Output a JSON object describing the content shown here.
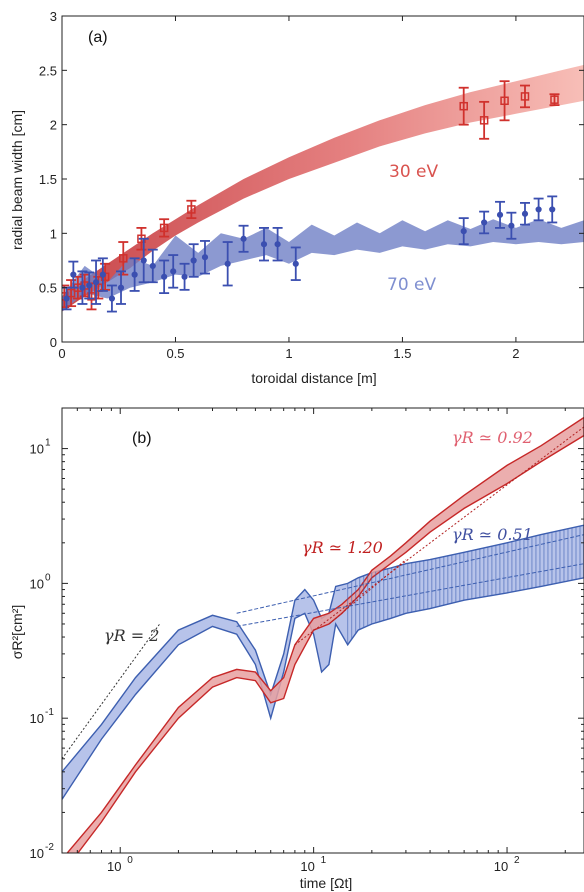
{
  "chart_data": [
    {
      "type": "line",
      "panel_label": "(a)",
      "xlabel": "toroidal distance [m]",
      "ylabel": "radial beam width [cm]",
      "xlim": [
        0,
        2.3
      ],
      "ylim": [
        0,
        3
      ],
      "xticks": [
        "0",
        "0.5",
        "1",
        "1.5",
        "2"
      ],
      "yticks": [
        "0",
        "0.5",
        "1",
        "1.5",
        "2",
        "2.5",
        "3"
      ],
      "series": [
        {
          "name": "30 eV",
          "color": "#d04040",
          "band_x": [
            0,
            0.1,
            0.2,
            0.3,
            0.4,
            0.5,
            0.6,
            0.8,
            1.0,
            1.2,
            1.4,
            1.6,
            1.8,
            2.0,
            2.2,
            2.3
          ],
          "band_low": [
            0.28,
            0.42,
            0.55,
            0.68,
            0.84,
            0.98,
            1.1,
            1.32,
            1.5,
            1.65,
            1.8,
            1.92,
            2.02,
            2.1,
            2.18,
            2.22
          ],
          "band_high": [
            0.42,
            0.58,
            0.72,
            0.86,
            1.0,
            1.13,
            1.26,
            1.5,
            1.7,
            1.88,
            2.04,
            2.18,
            2.3,
            2.4,
            2.5,
            2.55
          ],
          "points": [
            {
              "x": 0.01,
              "y": 0.42,
              "err": 0.1
            },
            {
              "x": 0.04,
              "y": 0.45,
              "err": 0.12
            },
            {
              "x": 0.07,
              "y": 0.5,
              "err": 0.1
            },
            {
              "x": 0.1,
              "y": 0.52,
              "err": 0.1
            },
            {
              "x": 0.13,
              "y": 0.42,
              "err": 0.12
            },
            {
              "x": 0.16,
              "y": 0.5,
              "err": 0.1
            },
            {
              "x": 0.19,
              "y": 0.6,
              "err": 0.12
            },
            {
              "x": 0.27,
              "y": 0.77,
              "err": 0.15
            },
            {
              "x": 0.35,
              "y": 0.95,
              "err": 0.1
            },
            {
              "x": 0.45,
              "y": 1.05,
              "err": 0.08
            },
            {
              "x": 0.57,
              "y": 1.22,
              "err": 0.08
            },
            {
              "x": 1.77,
              "y": 2.17,
              "err": 0.17
            },
            {
              "x": 1.86,
              "y": 2.04,
              "err": 0.17
            },
            {
              "x": 1.95,
              "y": 2.22,
              "err": 0.18
            },
            {
              "x": 2.04,
              "y": 2.26,
              "err": 0.1
            },
            {
              "x": 2.17,
              "y": 2.23,
              "err": 0.05
            }
          ]
        },
        {
          "name": "70 eV",
          "color": "#5060b0",
          "band_x": [
            0,
            0.1,
            0.2,
            0.3,
            0.4,
            0.5,
            0.6,
            0.7,
            0.8,
            0.9,
            1.0,
            1.1,
            1.2,
            1.3,
            1.4,
            1.5,
            1.6,
            1.7,
            1.8,
            1.9,
            2.0,
            2.1,
            2.2,
            2.3
          ],
          "band_low": [
            0.28,
            0.45,
            0.4,
            0.5,
            0.55,
            0.62,
            0.6,
            0.7,
            0.75,
            0.8,
            0.72,
            0.82,
            0.8,
            0.85,
            0.82,
            0.88,
            0.85,
            0.9,
            0.88,
            0.92,
            0.9,
            0.92,
            0.9,
            0.92
          ],
          "band_high": [
            0.42,
            0.7,
            0.55,
            0.78,
            0.7,
            0.98,
            0.82,
            1.0,
            0.95,
            1.05,
            0.92,
            1.08,
            0.98,
            1.1,
            1.0,
            1.12,
            1.02,
            1.12,
            1.04,
            1.13,
            1.05,
            1.13,
            1.05,
            1.12
          ],
          "points": [
            {
              "x": 0.02,
              "y": 0.4,
              "err": 0.1
            },
            {
              "x": 0.05,
              "y": 0.62,
              "err": 0.12
            },
            {
              "x": 0.09,
              "y": 0.5,
              "err": 0.15
            },
            {
              "x": 0.12,
              "y": 0.52,
              "err": 0.12
            },
            {
              "x": 0.15,
              "y": 0.55,
              "err": 0.2
            },
            {
              "x": 0.18,
              "y": 0.62,
              "err": 0.15
            },
            {
              "x": 0.22,
              "y": 0.4,
              "err": 0.12
            },
            {
              "x": 0.26,
              "y": 0.5,
              "err": 0.15
            },
            {
              "x": 0.32,
              "y": 0.62,
              "err": 0.15
            },
            {
              "x": 0.36,
              "y": 0.75,
              "err": 0.2
            },
            {
              "x": 0.4,
              "y": 0.7,
              "err": 0.15
            },
            {
              "x": 0.45,
              "y": 0.6,
              "err": 0.15
            },
            {
              "x": 0.49,
              "y": 0.65,
              "err": 0.15
            },
            {
              "x": 0.54,
              "y": 0.6,
              "err": 0.12
            },
            {
              "x": 0.58,
              "y": 0.75,
              "err": 0.15
            },
            {
              "x": 0.63,
              "y": 0.78,
              "err": 0.15
            },
            {
              "x": 0.73,
              "y": 0.72,
              "err": 0.2
            },
            {
              "x": 0.8,
              "y": 0.95,
              "err": 0.12
            },
            {
              "x": 0.89,
              "y": 0.9,
              "err": 0.15
            },
            {
              "x": 0.95,
              "y": 0.9,
              "err": 0.15
            },
            {
              "x": 1.03,
              "y": 0.72,
              "err": 0.15
            },
            {
              "x": 1.77,
              "y": 1.02,
              "err": 0.12
            },
            {
              "x": 1.86,
              "y": 1.1,
              "err": 0.1
            },
            {
              "x": 1.93,
              "y": 1.17,
              "err": 0.12
            },
            {
              "x": 1.98,
              "y": 1.07,
              "err": 0.12
            },
            {
              "x": 2.04,
              "y": 1.18,
              "err": 0.1
            },
            {
              "x": 2.1,
              "y": 1.22,
              "err": 0.1
            },
            {
              "x": 2.16,
              "y": 1.22,
              "err": 0.12
            }
          ]
        }
      ]
    },
    {
      "type": "line",
      "panel_label": "(b)",
      "xlabel": "time [Ωt]",
      "ylabel": "σR²[cm²]",
      "xscale": "log",
      "yscale": "log",
      "xlim": [
        0.5,
        250
      ],
      "ylim": [
        0.01,
        20
      ],
      "xticks": [
        {
          "base": "10",
          "exp": "0"
        },
        {
          "base": "10",
          "exp": "1"
        },
        {
          "base": "10",
          "exp": "2"
        }
      ],
      "yticks": [
        {
          "base": "10",
          "exp": "-2"
        },
        {
          "base": "10",
          "exp": "-1"
        },
        {
          "base": "10",
          "exp": "0"
        },
        {
          "base": "10",
          "exp": "1"
        }
      ],
      "annotations": [
        {
          "text": "γR ≃ 0.92",
          "color": "#e06070"
        },
        {
          "text": "γR ≃ 0.51",
          "color": "#4050a0"
        },
        {
          "text": "γR ≃ 1.20",
          "color": "#c02020"
        },
        {
          "text": "γR = 2",
          "color": "#333333"
        }
      ],
      "series": [
        {
          "name": "red",
          "color": "#c62828",
          "x": [
            0.5,
            0.8,
            1.2,
            2,
            3,
            4,
            5,
            6,
            7,
            8,
            10,
            12,
            14,
            17,
            20,
            25,
            30,
            40,
            60,
            100,
            150,
            250
          ],
          "low": [
            0.007,
            0.017,
            0.04,
            0.1,
            0.17,
            0.2,
            0.19,
            0.13,
            0.14,
            0.25,
            0.45,
            0.5,
            0.6,
            0.8,
            1.1,
            1.4,
            1.7,
            2.4,
            3.6,
            5.5,
            8.0,
            12.5
          ],
          "high": [
            0.009,
            0.02,
            0.045,
            0.12,
            0.2,
            0.23,
            0.22,
            0.16,
            0.2,
            0.35,
            0.55,
            0.6,
            0.7,
            0.9,
            1.25,
            1.6,
            2.0,
            2.9,
            4.5,
            7.5,
            10.5,
            17.0
          ]
        },
        {
          "name": "blue",
          "color": "#3d5fb0",
          "x": [
            0.5,
            0.8,
            1.2,
            2,
            3,
            4,
            5,
            6,
            7,
            8,
            9,
            10,
            11,
            12,
            13,
            15,
            17,
            20,
            25,
            30,
            40,
            60,
            100,
            150,
            250
          ],
          "low": [
            0.025,
            0.07,
            0.15,
            0.35,
            0.48,
            0.42,
            0.25,
            0.1,
            0.22,
            0.55,
            0.6,
            0.42,
            0.22,
            0.25,
            0.5,
            0.35,
            0.45,
            0.5,
            0.55,
            0.6,
            0.65,
            0.75,
            0.85,
            0.95,
            1.1
          ],
          "high": [
            0.04,
            0.09,
            0.2,
            0.45,
            0.58,
            0.52,
            0.32,
            0.15,
            0.3,
            0.75,
            0.9,
            0.75,
            0.55,
            0.6,
            0.95,
            1.0,
            1.1,
            1.2,
            1.3,
            1.4,
            1.5,
            1.7,
            2.0,
            2.3,
            2.7
          ]
        }
      ],
      "fits": [
        {
          "name": "γR ≃ 0.92",
          "x": [
            8,
            250
          ],
          "y": [
            0.35,
            14.5
          ]
        },
        {
          "name": "γR ≃ 1.20",
          "x": [
            12,
            30
          ],
          "y": [
            0.5,
            1.5
          ]
        },
        {
          "name": "γR ≃ 0.51 upper",
          "x": [
            4,
            250
          ],
          "y": [
            0.6,
            2.3
          ]
        },
        {
          "name": "γR ≃ 0.51 lower",
          "x": [
            4,
            250
          ],
          "y": [
            0.48,
            1.4
          ]
        },
        {
          "name": "γR = 2",
          "x": [
            0.5,
            1.6
          ],
          "y": [
            0.05,
            0.5
          ]
        }
      ]
    }
  ]
}
